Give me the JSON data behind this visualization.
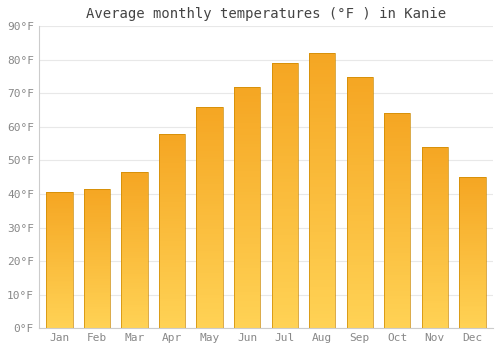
{
  "title": "Average monthly temperatures (°F ) in Kanie",
  "months": [
    "Jan",
    "Feb",
    "Mar",
    "Apr",
    "May",
    "Jun",
    "Jul",
    "Aug",
    "Sep",
    "Oct",
    "Nov",
    "Dec"
  ],
  "values": [
    40.5,
    41.5,
    46.5,
    58.0,
    66.0,
    72.0,
    79.0,
    82.0,
    75.0,
    64.0,
    54.0,
    45.0
  ],
  "bar_color_top": "#F5A623",
  "bar_color_bottom": "#FFD255",
  "bar_outline_color": "#CC8800",
  "background_color": "#ffffff",
  "grid_color": "#e8e8e8",
  "ylim": [
    0,
    90
  ],
  "yticks": [
    0,
    10,
    20,
    30,
    40,
    50,
    60,
    70,
    80,
    90
  ],
  "ytick_labels": [
    "0°F",
    "10°F",
    "20°F",
    "30°F",
    "40°F",
    "50°F",
    "60°F",
    "70°F",
    "80°F",
    "90°F"
  ],
  "title_fontsize": 10,
  "tick_fontsize": 8,
  "tick_color": "#888888",
  "bar_width": 0.7
}
